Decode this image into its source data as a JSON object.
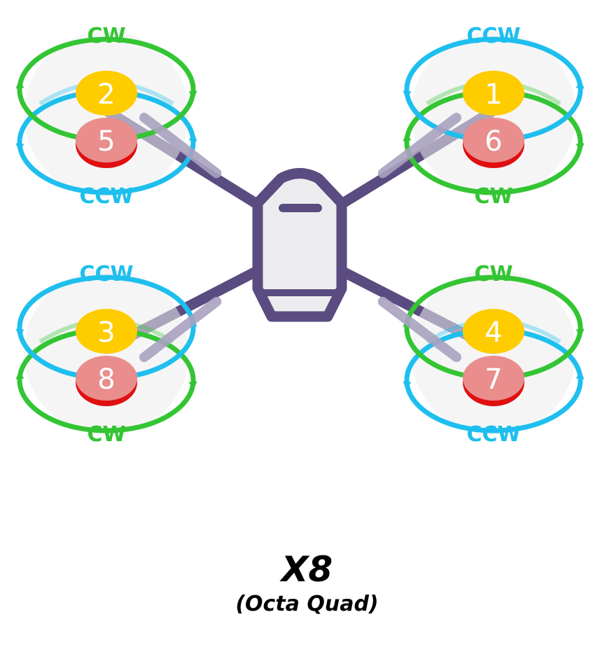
{
  "diagram": {
    "title": "X8",
    "subtitle": "(Octa Quad)",
    "colors": {
      "cw": "#33c533",
      "ccw": "#1ebfee",
      "frame": "#5a4c80",
      "body_fill": "#ececef",
      "top_motor": "#ffcc00",
      "bottom_motor": "#e98d8d",
      "bottom_motor_rim": "#e01010",
      "prop_disc": "#ececec"
    },
    "arms": [
      {
        "id": "front-left",
        "top_motor": "2",
        "bottom_motor": "5",
        "top_rotation": "CW",
        "bottom_rotation": "CCW"
      },
      {
        "id": "front-right",
        "top_motor": "1",
        "bottom_motor": "6",
        "top_rotation": "CCW",
        "bottom_rotation": "CW"
      },
      {
        "id": "rear-left",
        "top_motor": "3",
        "bottom_motor": "8",
        "top_rotation": "CCW",
        "bottom_rotation": "CW"
      },
      {
        "id": "rear-right",
        "top_motor": "4",
        "bottom_motor": "7",
        "top_rotation": "CW",
        "bottom_rotation": "CCW"
      }
    ]
  }
}
